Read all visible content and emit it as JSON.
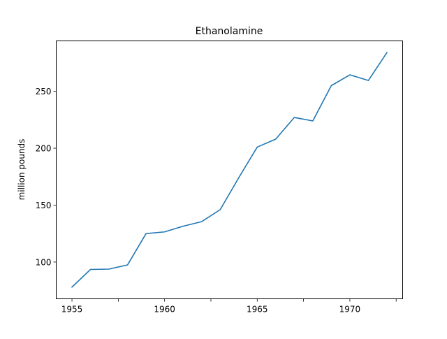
{
  "chart_data": {
    "type": "line",
    "title": "Ethanolamine",
    "xlabel": "",
    "ylabel": "million pounds",
    "x": [
      1955,
      1956,
      1957,
      1958,
      1959,
      1960,
      1961,
      1962,
      1963,
      1964,
      1965,
      1966,
      1967,
      1968,
      1969,
      1970,
      1971,
      1972
    ],
    "series": [
      {
        "values": [
          78,
          93.5,
          93.8,
          97.5,
          125,
          126.5,
          131.5,
          135.5,
          146,
          174,
          201,
          208,
          227,
          224,
          255,
          264.5,
          259.5,
          284
        ],
        "color": "#1f77b4"
      }
    ],
    "xlim": [
      1954.15,
      1972.85
    ],
    "ylim": [
      67.7,
      294.3
    ],
    "xticks": [
      1955,
      1957.5,
      1960,
      1962.5,
      1965,
      1967.5,
      1970,
      1972.5
    ],
    "xtick_labels": [
      "1955",
      "",
      "1960",
      "",
      "1965",
      "",
      "1970",
      ""
    ],
    "yticks": [
      100,
      150,
      200,
      250
    ],
    "ytick_labels": [
      "100",
      "150",
      "200",
      "250"
    ],
    "grid": false,
    "legend": "none"
  }
}
